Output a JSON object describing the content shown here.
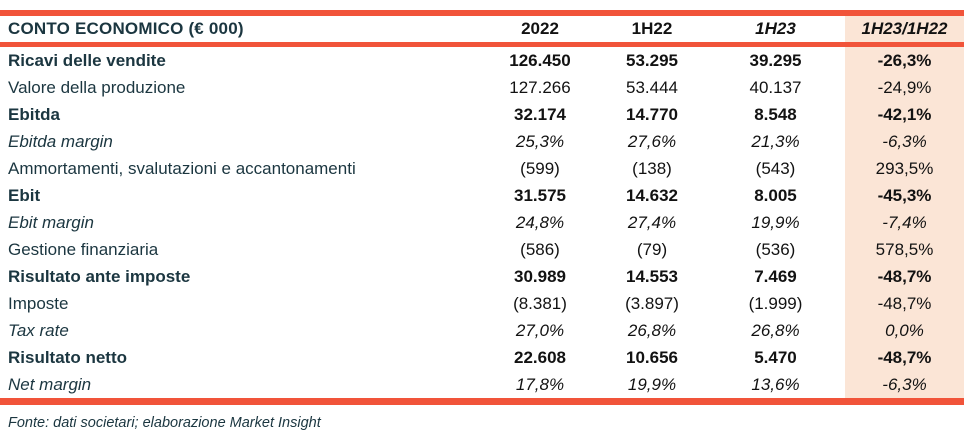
{
  "table": {
    "header": {
      "label": "CONTO ECONOMICO (€ 000)",
      "columns": [
        "2022",
        "1H22",
        "1H23",
        "1H23/1H22"
      ]
    },
    "rows": [
      {
        "label": "Ricavi delle vendite",
        "style": "bold",
        "values": [
          "126.450",
          "53.295",
          "39.295",
          "-26,3%"
        ]
      },
      {
        "label": "Valore della produzione",
        "style": "regular",
        "values": [
          "127.266",
          "53.444",
          "40.137",
          "-24,9%"
        ]
      },
      {
        "label": "Ebitda",
        "style": "bold",
        "values": [
          "32.174",
          "14.770",
          "8.548",
          "-42,1%"
        ]
      },
      {
        "label": "Ebitda margin",
        "style": "italic",
        "values": [
          "25,3%",
          "27,6%",
          "21,3%",
          "-6,3%"
        ]
      },
      {
        "label": "Ammortamenti, svalutazioni e accantonamenti",
        "style": "regular",
        "values": [
          "(599)",
          "(138)",
          "(543)",
          "293,5%"
        ]
      },
      {
        "label": "Ebit",
        "style": "bold",
        "values": [
          "31.575",
          "14.632",
          "8.005",
          "-45,3%"
        ]
      },
      {
        "label": "Ebit margin",
        "style": "italic",
        "values": [
          "24,8%",
          "27,4%",
          "19,9%",
          "-7,4%"
        ]
      },
      {
        "label": "Gestione finanziaria",
        "style": "regular",
        "values": [
          "(586)",
          "(79)",
          "(536)",
          "578,5%"
        ]
      },
      {
        "label": "Risultato ante imposte",
        "style": "bold",
        "values": [
          "30.989",
          "14.553",
          "7.469",
          "-48,7%"
        ]
      },
      {
        "label": "Imposte",
        "style": "regular",
        "values": [
          "(8.381)",
          "(3.897)",
          "(1.999)",
          "-48,7%"
        ]
      },
      {
        "label": "Tax rate",
        "style": "italic",
        "values": [
          "27,0%",
          "26,8%",
          "26,8%",
          "0,0%"
        ]
      },
      {
        "label": "Risultato netto",
        "style": "bold",
        "values": [
          "22.608",
          "10.656",
          "5.470",
          "-48,7%"
        ]
      },
      {
        "label": "Net margin",
        "style": "italic",
        "values": [
          "17,8%",
          "19,9%",
          "13,6%",
          "-6,3%"
        ]
      }
    ]
  },
  "footer": {
    "source": "Fonte: dati societari; elaborazione Market Insight"
  },
  "colors": {
    "accent_red": "#F1543A",
    "highlight_peach": "#FBE5D6",
    "label_navy": "#1B3640",
    "number_black": "#121212"
  }
}
